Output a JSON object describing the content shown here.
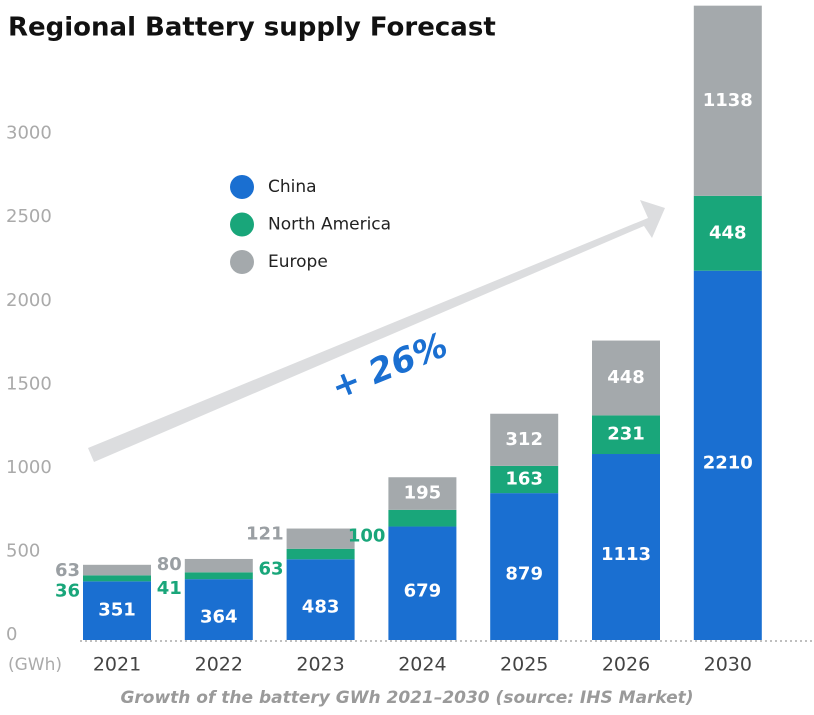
{
  "chart_data": {
    "type": "stacked_bar",
    "title": "Regional Battery supply Forecast",
    "unit_label": "(GWh)",
    "annotation": "+ 26%",
    "caption": "Growth of the battery GWh 2021–2030 (source: IHS Market)",
    "categories": [
      "2021",
      "2022",
      "2023",
      "2024",
      "2025",
      "2026",
      "2030"
    ],
    "series": [
      {
        "name": "China",
        "color": "#1a6fd1",
        "values": [
          351,
          364,
          483,
          679,
          879,
          1113,
          2210
        ]
      },
      {
        "name": "North America",
        "color": "#19a67a",
        "values": [
          36,
          41,
          63,
          100,
          163,
          231,
          448
        ]
      },
      {
        "name": "Europe",
        "color": "#a4a9ac",
        "values": [
          63,
          80,
          121,
          195,
          312,
          448,
          1138
        ]
      }
    ],
    "ylim": [
      0,
      3800
    ],
    "yticks": [
      0,
      500,
      1000,
      1500,
      2000,
      2500,
      3000
    ],
    "legend": "upper left"
  }
}
